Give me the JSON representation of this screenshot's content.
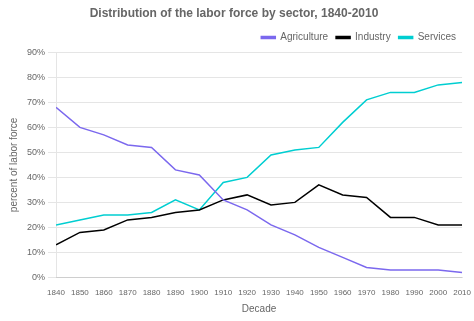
{
  "chart_data": {
    "type": "line",
    "title": "Distribution of the labor force by sector, 1840-2010",
    "xlabel": "Decade",
    "ylabel": "percent of labor force",
    "x": [
      1840,
      1850,
      1860,
      1870,
      1880,
      1890,
      1900,
      1910,
      1920,
      1930,
      1940,
      1950,
      1960,
      1970,
      1980,
      1990,
      2000,
      2010
    ],
    "series": [
      {
        "name": "Agriculture",
        "color": "#7b68ee",
        "values": [
          68,
          60,
          57,
          53,
          52,
          43,
          41,
          31,
          27,
          21,
          17,
          12,
          8,
          4,
          3,
          3,
          3,
          2
        ]
      },
      {
        "name": "Industry",
        "color": "#000000",
        "values": [
          13,
          18,
          19,
          23,
          24,
          26,
          27,
          31,
          33,
          29,
          30,
          37,
          33,
          32,
          24,
          24,
          21,
          21
        ]
      },
      {
        "name": "Services",
        "color": "#00ced1",
        "values": [
          21,
          23,
          25,
          25,
          26,
          31,
          27,
          38,
          40,
          49,
          51,
          52,
          62,
          71,
          74,
          74,
          77,
          78
        ]
      }
    ],
    "xlim": [
      1840,
      2010
    ],
    "xticks": [
      1840,
      1850,
      1860,
      1870,
      1880,
      1890,
      1900,
      1910,
      1920,
      1930,
      1940,
      1950,
      1960,
      1970,
      1980,
      1990,
      2000,
      2010
    ],
    "ylim": [
      0,
      90
    ],
    "yticks": [
      {
        "value": 0,
        "label": "0%"
      },
      {
        "value": 10,
        "label": "10%"
      },
      {
        "value": 20,
        "label": "20%"
      },
      {
        "value": 30,
        "label": "30%"
      },
      {
        "value": 40,
        "label": "40%"
      },
      {
        "value": 50,
        "label": "50%"
      },
      {
        "value": 60,
        "label": "60%"
      },
      {
        "value": 70,
        "label": "70%"
      },
      {
        "value": 80,
        "label": "80%"
      },
      {
        "value": 90,
        "label": "90%"
      }
    ],
    "grid": "y",
    "legend": "upper right"
  }
}
